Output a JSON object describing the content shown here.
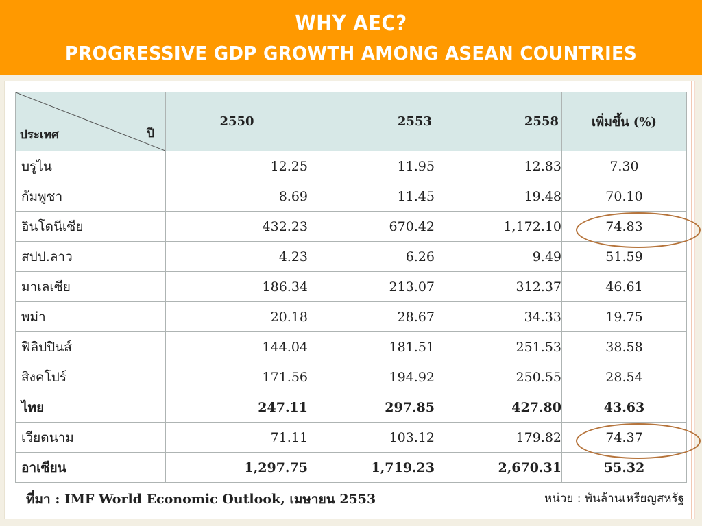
{
  "slide": {
    "title_line1": "WHY AEC?",
    "title_line2": "PROGRESSIVE GDP GROWTH AMONG ASEAN COUNTRIES"
  },
  "table": {
    "corner_country": "ประเทศ",
    "corner_year": "ปี",
    "headers": [
      "2550",
      "2553",
      "2558",
      "เพิ่มขึ้น (%)"
    ],
    "rows": [
      {
        "country": "บรูไน",
        "v2550": "12.25",
        "v2553": "11.95",
        "v2558": "12.83",
        "pct": "7.30"
      },
      {
        "country": "กัมพูชา",
        "v2550": "8.69",
        "v2553": "11.45",
        "v2558": "19.48",
        "pct": "70.10"
      },
      {
        "country": "อินโดนีเซีย",
        "v2550": "432.23",
        "v2553": "670.42",
        "v2558": "1,172.10",
        "pct": "74.83"
      },
      {
        "country": "สปป.ลาว",
        "v2550": "4.23",
        "v2553": "6.26",
        "v2558": "9.49",
        "pct": "51.59"
      },
      {
        "country": "มาเลเซีย",
        "v2550": "186.34",
        "v2553": "213.07",
        "v2558": "312.37",
        "pct": "46.61"
      },
      {
        "country": "พม่า",
        "v2550": "20.18",
        "v2553": "28.67",
        "v2558": "34.33",
        "pct": "19.75"
      },
      {
        "country": "ฟิลิปปินส์",
        "v2550": "144.04",
        "v2553": "181.51",
        "v2558": "251.53",
        "pct": "38.58"
      },
      {
        "country": "สิงคโปร์",
        "v2550": "171.56",
        "v2553": "194.92",
        "v2558": "250.55",
        "pct": "28.54"
      },
      {
        "country": "ไทย",
        "v2550": "247.11",
        "v2553": "297.85",
        "v2558": "427.80",
        "pct": "43.63"
      },
      {
        "country": "เวียดนาม",
        "v2550": "71.11",
        "v2553": "103.12",
        "v2558": "179.82",
        "pct": "74.37"
      },
      {
        "country": "อาเซียน",
        "v2550": "1,297.75",
        "v2553": "1,719.23",
        "v2558": "2,670.31",
        "pct": "55.32"
      }
    ]
  },
  "footer": {
    "source": "ที่มา : IMF World Economic Outlook, เมษายน 2553",
    "unit": "หน่วย : พันล้านเหรียญสหรัฐ"
  },
  "colors": {
    "header_bg": "#ff9900",
    "table_header_bg": "#d7e8e7",
    "highlight_circle": "#b5733a"
  }
}
